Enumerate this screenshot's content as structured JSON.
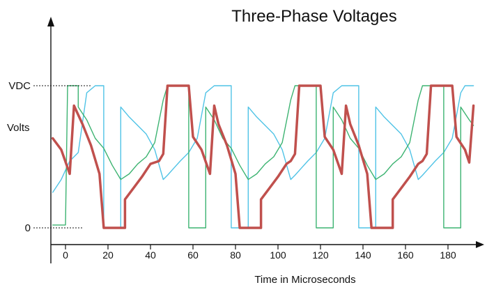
{
  "chart_data": {
    "type": "line",
    "title": "Three-Phase Voltages",
    "xlabel": "Time in Microseconds",
    "ylabel": "Volts",
    "xlim": [
      -7,
      192
    ],
    "ylim": [
      0,
      1
    ],
    "x_ticks": [
      0,
      20,
      40,
      60,
      80,
      100,
      120,
      140,
      160,
      180
    ],
    "y_tick_labels": [
      {
        "value": 1,
        "label": "VDC"
      },
      {
        "value": 0,
        "label": "0"
      }
    ],
    "grid": false,
    "period_us": 60,
    "series": [
      {
        "color": "#4fc3e6",
        "points": [
          [
            -6,
            0.25
          ],
          [
            -2,
            0.34
          ],
          [
            2,
            0.47
          ],
          [
            6,
            0.53
          ],
          [
            10,
            0.95
          ],
          [
            14,
            1
          ],
          [
            18,
            1
          ],
          [
            18,
            0
          ],
          [
            26,
            0
          ],
          [
            26,
            0.85
          ],
          [
            30,
            0.78
          ],
          [
            34,
            0.72
          ],
          [
            38,
            0.66
          ],
          [
            42,
            0.55
          ],
          [
            46,
            0.34
          ],
          [
            48,
            0.37
          ],
          [
            51,
            0.42
          ],
          [
            54,
            0.47
          ],
          [
            58,
            0.53
          ],
          [
            62,
            0.63
          ],
          [
            66,
            0.95
          ],
          [
            70,
            1
          ],
          [
            74,
            1
          ],
          [
            78,
            1
          ],
          [
            78,
            0
          ],
          [
            86,
            0
          ],
          [
            86,
            0.85
          ],
          [
            90,
            0.78
          ],
          [
            94,
            0.72
          ],
          [
            98,
            0.66
          ],
          [
            102,
            0.55
          ],
          [
            106,
            0.34
          ],
          [
            108,
            0.37
          ],
          [
            111,
            0.42
          ],
          [
            114,
            0.47
          ],
          [
            118,
            0.53
          ],
          [
            122,
            0.63
          ],
          [
            126,
            0.95
          ],
          [
            130,
            1
          ],
          [
            134,
            1
          ],
          [
            138,
            1
          ],
          [
            138,
            0
          ],
          [
            146,
            0
          ],
          [
            146,
            0.85
          ],
          [
            150,
            0.78
          ],
          [
            154,
            0.72
          ],
          [
            158,
            0.66
          ],
          [
            162,
            0.55
          ],
          [
            166,
            0.34
          ],
          [
            168,
            0.37
          ],
          [
            171,
            0.42
          ],
          [
            174,
            0.47
          ],
          [
            178,
            0.53
          ],
          [
            182,
            0.63
          ],
          [
            186,
            0.95
          ],
          [
            188,
            1
          ],
          [
            192,
            1
          ]
        ]
      },
      {
        "color": "#3cb371",
        "points": [
          [
            -6,
            0.02
          ],
          [
            0,
            0.02
          ],
          [
            1,
            1
          ],
          [
            6,
            1
          ],
          [
            6,
            0.85
          ],
          [
            10,
            0.76
          ],
          [
            14,
            0.63
          ],
          [
            18,
            0.56
          ],
          [
            22,
            0.44
          ],
          [
            26,
            0.34
          ],
          [
            30,
            0.38
          ],
          [
            34,
            0.45
          ],
          [
            38,
            0.5
          ],
          [
            42,
            0.6
          ],
          [
            46,
            0.9
          ],
          [
            48,
            1
          ],
          [
            52,
            1
          ],
          [
            58,
            1
          ],
          [
            58,
            0
          ],
          [
            66,
            0
          ],
          [
            66,
            0.85
          ],
          [
            70,
            0.76
          ],
          [
            74,
            0.63
          ],
          [
            78,
            0.56
          ],
          [
            82,
            0.44
          ],
          [
            86,
            0.34
          ],
          [
            90,
            0.38
          ],
          [
            94,
            0.45
          ],
          [
            98,
            0.5
          ],
          [
            102,
            0.6
          ],
          [
            106,
            0.9
          ],
          [
            108,
            1
          ],
          [
            112,
            1
          ],
          [
            118,
            1
          ],
          [
            118,
            0
          ],
          [
            126,
            0
          ],
          [
            126,
            0.85
          ],
          [
            130,
            0.76
          ],
          [
            134,
            0.63
          ],
          [
            138,
            0.56
          ],
          [
            142,
            0.44
          ],
          [
            146,
            0.34
          ],
          [
            150,
            0.38
          ],
          [
            154,
            0.45
          ],
          [
            158,
            0.5
          ],
          [
            162,
            0.6
          ],
          [
            166,
            0.9
          ],
          [
            168,
            1
          ],
          [
            172,
            1
          ],
          [
            178,
            1
          ],
          [
            178,
            0
          ],
          [
            186,
            0
          ],
          [
            186,
            0.85
          ],
          [
            190,
            0.76
          ],
          [
            192,
            0.72
          ]
        ]
      },
      {
        "color": "#c0504d",
        "points": [
          [
            -6,
            0.63
          ],
          [
            -2,
            0.55
          ],
          [
            2,
            0.38
          ],
          [
            4,
            0.86
          ],
          [
            8,
            0.73
          ],
          [
            12,
            0.58
          ],
          [
            16,
            0.38
          ],
          [
            18,
            0
          ],
          [
            22,
            0
          ],
          [
            28,
            0
          ],
          [
            28,
            0.2
          ],
          [
            32,
            0.28
          ],
          [
            36,
            0.36
          ],
          [
            40,
            0.45
          ],
          [
            44,
            0.47
          ],
          [
            46,
            0.52
          ],
          [
            48,
            1
          ],
          [
            52,
            1
          ],
          [
            58,
            1
          ],
          [
            60,
            0.64
          ],
          [
            64,
            0.55
          ],
          [
            68,
            0.38
          ],
          [
            70,
            0.86
          ],
          [
            72,
            0.73
          ],
          [
            76,
            0.58
          ],
          [
            80,
            0.38
          ],
          [
            82,
            0
          ],
          [
            86,
            0
          ],
          [
            92,
            0
          ],
          [
            92,
            0.2
          ],
          [
            96,
            0.28
          ],
          [
            100,
            0.36
          ],
          [
            104,
            0.45
          ],
          [
            106,
            0.47
          ],
          [
            108,
            0.52
          ],
          [
            110,
            1
          ],
          [
            114,
            1
          ],
          [
            120,
            1
          ],
          [
            122,
            0.64
          ],
          [
            126,
            0.55
          ],
          [
            130,
            0.38
          ],
          [
            132,
            0.86
          ],
          [
            134,
            0.73
          ],
          [
            138,
            0.58
          ],
          [
            142,
            0.38
          ],
          [
            144,
            0
          ],
          [
            148,
            0
          ],
          [
            154,
            0
          ],
          [
            154,
            0.2
          ],
          [
            158,
            0.28
          ],
          [
            162,
            0.36
          ],
          [
            166,
            0.45
          ],
          [
            168,
            0.47
          ],
          [
            170,
            0.52
          ],
          [
            172,
            1
          ],
          [
            176,
            1
          ],
          [
            182,
            1
          ],
          [
            184,
            0.64
          ],
          [
            188,
            0.55
          ],
          [
            190,
            0.46
          ],
          [
            192,
            0.86
          ]
        ]
      }
    ]
  }
}
